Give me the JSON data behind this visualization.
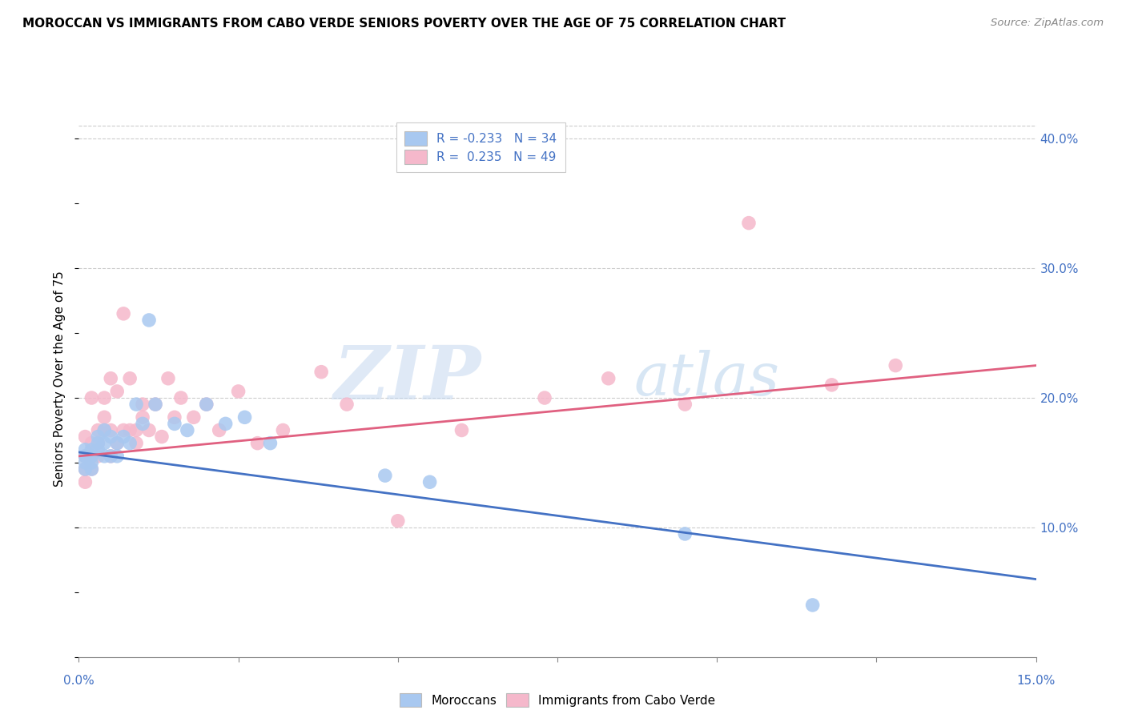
{
  "title": "MOROCCAN VS IMMIGRANTS FROM CABO VERDE SENIORS POVERTY OVER THE AGE OF 75 CORRELATION CHART",
  "source": "Source: ZipAtlas.com",
  "ylabel": "Seniors Poverty Over the Age of 75",
  "right_yticks": [
    "10.0%",
    "20.0%",
    "30.0%",
    "40.0%"
  ],
  "right_ytick_vals": [
    0.1,
    0.2,
    0.3,
    0.4
  ],
  "legend_blue_r": "R = -0.233",
  "legend_blue_n": "N = 34",
  "legend_pink_r": "R =  0.235",
  "legend_pink_n": "N = 49",
  "blue_color": "#A8C8F0",
  "pink_color": "#F5B8CB",
  "blue_line_color": "#4472C4",
  "pink_line_color": "#E06080",
  "watermark_zip": "ZIP",
  "watermark_atlas": "atlas",
  "xlim": [
    0.0,
    0.15
  ],
  "ylim": [
    0.0,
    0.43
  ],
  "blue_scatter_x": [
    0.001,
    0.001,
    0.001,
    0.001,
    0.002,
    0.002,
    0.002,
    0.002,
    0.003,
    0.003,
    0.003,
    0.004,
    0.004,
    0.004,
    0.005,
    0.005,
    0.006,
    0.006,
    0.007,
    0.008,
    0.009,
    0.01,
    0.011,
    0.012,
    0.015,
    0.017,
    0.02,
    0.023,
    0.026,
    0.03,
    0.048,
    0.055,
    0.095,
    0.115
  ],
  "blue_scatter_y": [
    0.155,
    0.145,
    0.16,
    0.15,
    0.155,
    0.16,
    0.15,
    0.145,
    0.165,
    0.16,
    0.17,
    0.165,
    0.155,
    0.175,
    0.17,
    0.155,
    0.165,
    0.155,
    0.17,
    0.165,
    0.195,
    0.18,
    0.26,
    0.195,
    0.18,
    0.175,
    0.195,
    0.18,
    0.185,
    0.165,
    0.14,
    0.135,
    0.095,
    0.04
  ],
  "pink_scatter_x": [
    0.001,
    0.001,
    0.001,
    0.001,
    0.002,
    0.002,
    0.002,
    0.002,
    0.003,
    0.003,
    0.003,
    0.004,
    0.004,
    0.004,
    0.005,
    0.005,
    0.005,
    0.006,
    0.006,
    0.007,
    0.007,
    0.008,
    0.008,
    0.009,
    0.009,
    0.01,
    0.01,
    0.011,
    0.012,
    0.013,
    0.014,
    0.015,
    0.016,
    0.018,
    0.02,
    0.022,
    0.025,
    0.028,
    0.032,
    0.038,
    0.042,
    0.05,
    0.06,
    0.073,
    0.083,
    0.095,
    0.105,
    0.118,
    0.128
  ],
  "pink_scatter_y": [
    0.155,
    0.17,
    0.145,
    0.135,
    0.165,
    0.155,
    0.145,
    0.2,
    0.175,
    0.165,
    0.155,
    0.185,
    0.2,
    0.175,
    0.155,
    0.215,
    0.175,
    0.165,
    0.205,
    0.175,
    0.265,
    0.175,
    0.215,
    0.165,
    0.175,
    0.185,
    0.195,
    0.175,
    0.195,
    0.17,
    0.215,
    0.185,
    0.2,
    0.185,
    0.195,
    0.175,
    0.205,
    0.165,
    0.175,
    0.22,
    0.195,
    0.105,
    0.175,
    0.2,
    0.215,
    0.195,
    0.335,
    0.21,
    0.225
  ],
  "blue_line_x": [
    0.0,
    0.15
  ],
  "blue_line_y": [
    0.158,
    0.06
  ],
  "pink_line_x": [
    0.0,
    0.15
  ],
  "pink_line_y": [
    0.155,
    0.225
  ]
}
